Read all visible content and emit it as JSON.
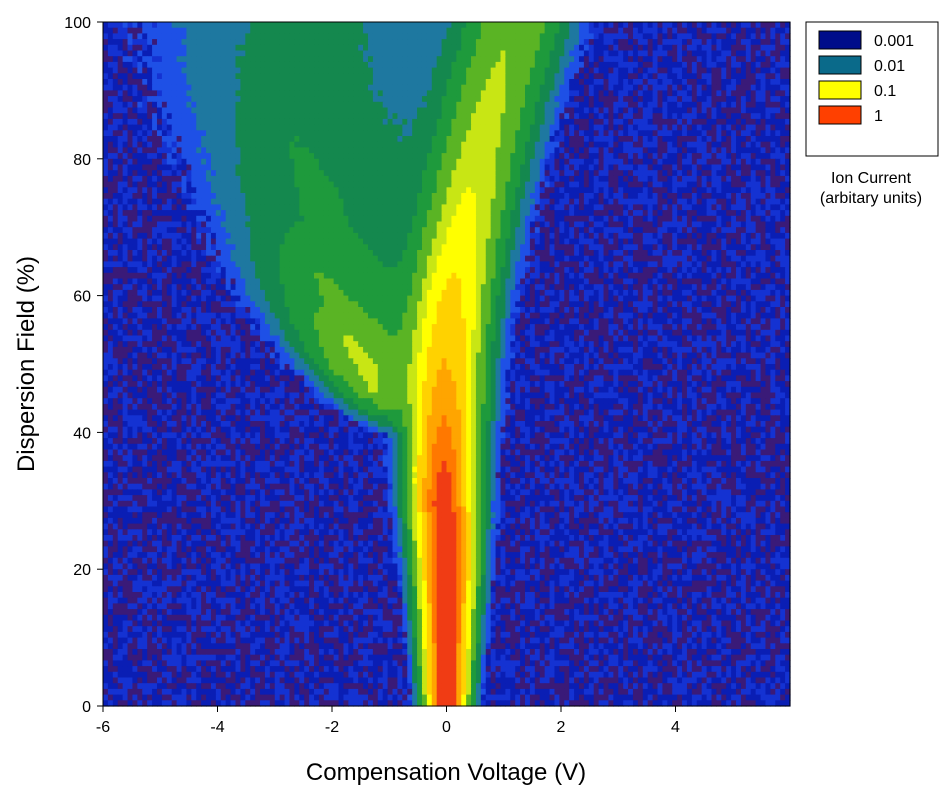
{
  "chart_data": {
    "type": "heatmap",
    "xlabel": "Compensation Voltage (V)",
    "ylabel": "Dispersion Field (%)",
    "xlim": [
      -6,
      6
    ],
    "ylim": [
      0,
      100
    ],
    "x_ticks": [
      "-6",
      "-4",
      "-2",
      "0",
      "2",
      "4"
    ],
    "x_tick_values": [
      -6,
      -4,
      -2,
      0,
      2,
      4
    ],
    "y_ticks": [
      "0",
      "20",
      "40",
      "60",
      "80",
      "100"
    ],
    "y_tick_values": [
      0,
      20,
      40,
      60,
      80,
      100
    ],
    "color_scale": "log",
    "legend": {
      "title_line1": "Ion Current",
      "title_line2": "(arbitary units)",
      "placement": "right",
      "entries": [
        {
          "label": "0.001",
          "color": "#000c8a"
        },
        {
          "label": "0.01",
          "color": "#0a6a8a"
        },
        {
          "label": "0.1",
          "color": "#ffff00"
        },
        {
          "label": "1",
          "color": "#ff4000"
        }
      ]
    },
    "main_branch": [
      {
        "field": 0,
        "cv": 0.0,
        "peak": 1.0
      },
      {
        "field": 20,
        "cv": 0.0,
        "peak": 1.0
      },
      {
        "field": 30,
        "cv": -0.05,
        "peak": 0.9
      },
      {
        "field": 40,
        "cv": -0.05,
        "peak": 0.55
      },
      {
        "field": 50,
        "cv": 0.0,
        "peak": 0.3
      },
      {
        "field": 60,
        "cv": 0.1,
        "peak": 0.2
      },
      {
        "field": 70,
        "cv": 0.3,
        "peak": 0.12
      },
      {
        "field": 80,
        "cv": 0.55,
        "peak": 0.08
      },
      {
        "field": 90,
        "cv": 0.85,
        "peak": 0.06
      },
      {
        "field": 100,
        "cv": 1.2,
        "peak": 0.05
      }
    ],
    "side_branch": [
      {
        "field": 40,
        "cv": -0.9,
        "peak": 0.02
      },
      {
        "field": 50,
        "cv": -1.6,
        "peak": 0.05
      },
      {
        "field": 60,
        "cv": -2.2,
        "peak": 0.02
      },
      {
        "field": 70,
        "cv": -2.5,
        "peak": 0.01
      },
      {
        "field": 80,
        "cv": -2.7,
        "peak": 0.007
      },
      {
        "field": 90,
        "cv": -2.9,
        "peak": 0.005
      },
      {
        "field": 100,
        "cv": -3.0,
        "peak": 0.004
      }
    ],
    "background_level": 0.0005
  }
}
